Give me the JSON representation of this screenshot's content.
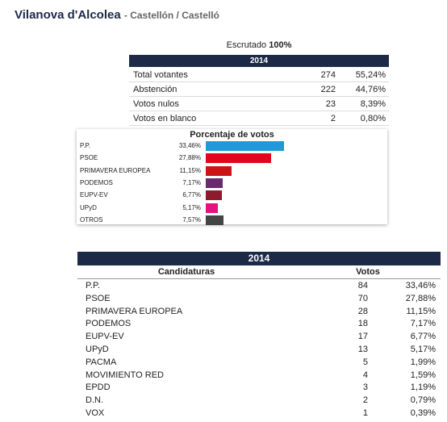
{
  "header": {
    "title": "Vilanova d'Alcolea",
    "subtitle": "- Castellón / Castelló"
  },
  "scrutiny": {
    "label": "Escrutado",
    "value": "100%"
  },
  "summary": {
    "year": "2014",
    "rows": [
      [
        "Total votantes",
        274,
        "55,24%"
      ],
      [
        "Abstención",
        222,
        "44,76%"
      ],
      [
        "Votos nulos",
        23,
        "8,39%"
      ],
      [
        "Votos en blanco",
        2,
        "0,80%"
      ]
    ]
  },
  "vote_chart": {
    "title": "Porcentaje de votos",
    "categories": [
      "P.P.",
      "PSOE",
      "PRIMAVERA EUROPEA",
      "PODEMOS",
      "EUPV-EV",
      "UPyD",
      "OTROS"
    ],
    "values": [
      33.46,
      27.88,
      11.15,
      7.17,
      6.77,
      5.17,
      7.57
    ],
    "value_labels": [
      "33,46%",
      "27,88%",
      "11,15%",
      "7,17%",
      "6,77%",
      "5,17%",
      "7,57%"
    ],
    "colors": [
      "#1e9ad8",
      "#e3051b",
      "#cc1417",
      "#6a2b6e",
      "#8c1b2e",
      "#e5117f",
      "#444444"
    ]
  },
  "results": {
    "year": "2014",
    "columns": [
      "Candidaturas",
      "Votos"
    ],
    "rows": [
      [
        "P.P.",
        84,
        "33,46%"
      ],
      [
        "PSOE",
        70,
        "27,88%"
      ],
      [
        "PRIMAVERA EUROPEA",
        28,
        "11,15%"
      ],
      [
        "PODEMOS",
        18,
        "7,17%"
      ],
      [
        "EUPV-EV",
        17,
        "6,77%"
      ],
      [
        "UPyD",
        13,
        "5,17%"
      ],
      [
        "PACMA",
        5,
        "1,99%"
      ],
      [
        "MOVIMIENTO RED",
        4,
        "1,59%"
      ],
      [
        "EPDD",
        3,
        "1,19%"
      ],
      [
        "D.N.",
        2,
        "0,79%"
      ],
      [
        "VOX",
        1,
        "0,39%"
      ]
    ]
  }
}
